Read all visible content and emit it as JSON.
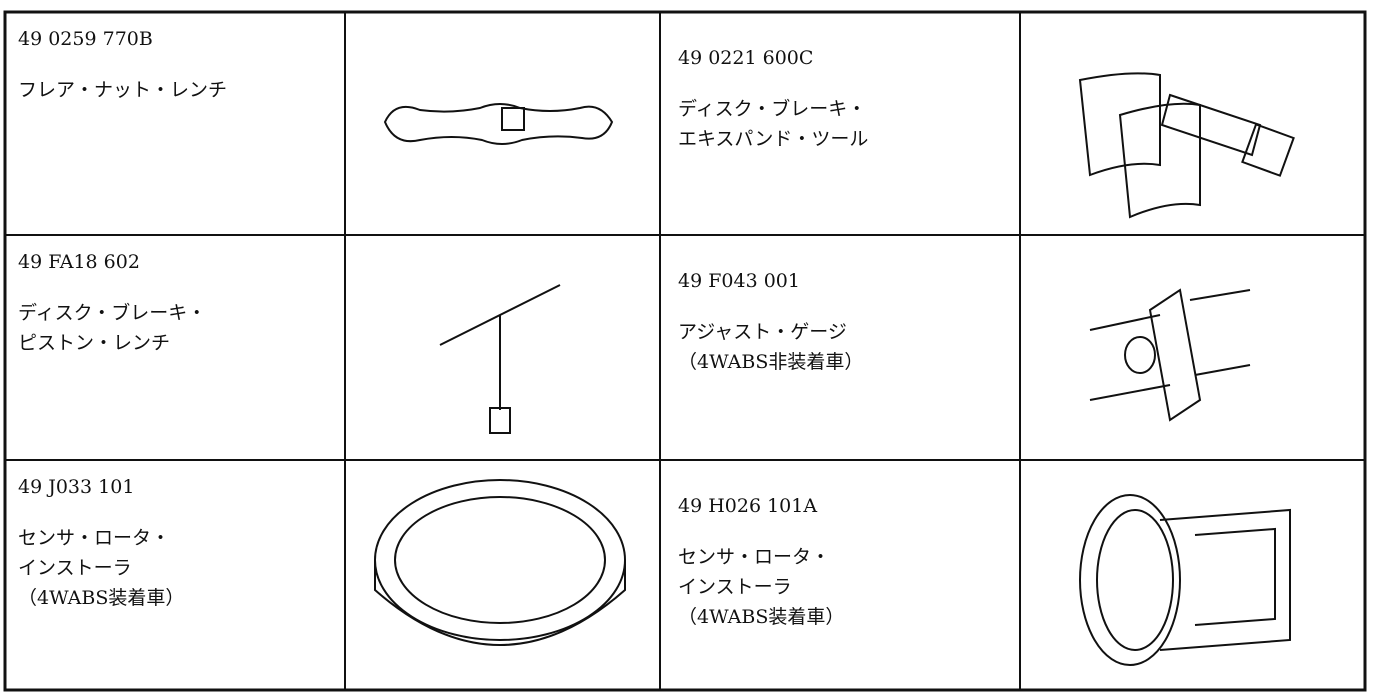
{
  "table": {
    "rows": [
      [
        {
          "part": "49 0259 770B",
          "name": [
            "フレア・ナット・レンチ"
          ]
        },
        {
          "part": "49 0221 600C",
          "name": [
            "ディスク・ブレーキ・",
            "エキスパンド・ツール"
          ]
        }
      ],
      [
        {
          "part": "49 FA18 602",
          "name": [
            "ディスク・ブレーキ・",
            "ピストン・レンチ"
          ]
        },
        {
          "part": "49 F043 001",
          "name": [
            "アジャスト・ゲージ",
            "（4WABS非装着車）"
          ]
        }
      ],
      [
        {
          "part": "49 J033 101",
          "name": [
            "センサ・ロータ・",
            "インストーラ",
            "（4WABS装着車）"
          ]
        },
        {
          "part": "49 H026 101A",
          "name": [
            "センサ・ロータ・",
            "インストーラ",
            "（4WABS装着車）"
          ]
        }
      ]
    ]
  }
}
